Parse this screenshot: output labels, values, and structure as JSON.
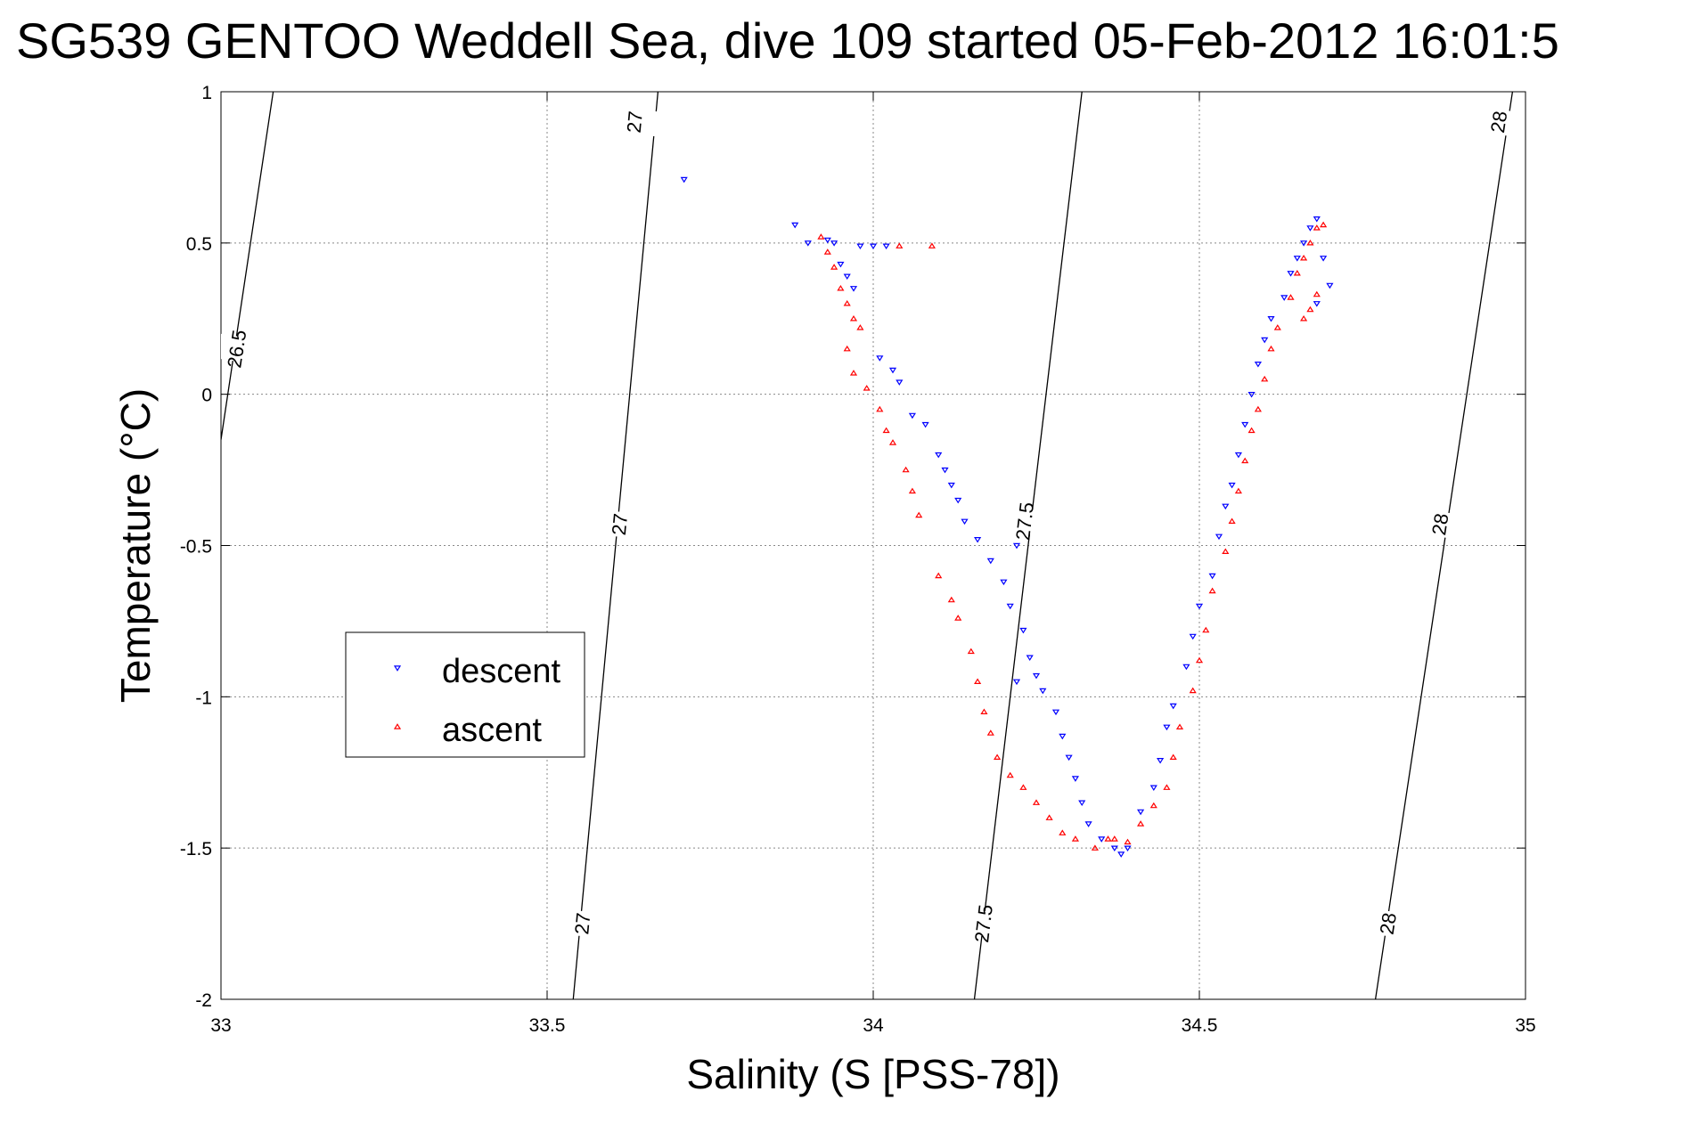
{
  "chart_data": {
    "type": "scatter",
    "title": "SG539 GENTOO Weddell Sea, dive 109 started 05-Feb-2012 16:01:5",
    "xlabel": "Salinity (S [PSS-78])",
    "ylabel": "Temperature (°C)",
    "xlim": [
      33,
      35
    ],
    "ylim": [
      -2,
      1
    ],
    "xticks": [
      33,
      33.5,
      34,
      34.5,
      35
    ],
    "xtick_labels": [
      "33",
      "33.5",
      "34",
      "34.5",
      "35"
    ],
    "yticks": [
      -2,
      -1.5,
      -1,
      -0.5,
      0,
      0.5,
      1
    ],
    "ytick_labels": [
      "-2",
      "-1.5",
      "-1",
      "-0.5",
      "0",
      "0.5",
      "1"
    ],
    "grid": true,
    "legend_position": "middle-left",
    "density_contours": [
      {
        "label": "26.5",
        "points": [
          [
            33.08,
            1.0
          ],
          [
            33.0,
            -0.15
          ]
        ],
        "label_positions": [
          [
            33.025,
            0.15
          ]
        ]
      },
      {
        "label": "27",
        "points": [
          [
            33.67,
            1.0
          ],
          [
            33.54,
            -2.0
          ]
        ],
        "label_positions": [
          [
            33.635,
            0.9
          ],
          [
            33.612,
            -0.43
          ],
          [
            33.555,
            -1.75
          ]
        ]
      },
      {
        "label": "27.5",
        "points": [
          [
            34.32,
            1.0
          ],
          [
            34.155,
            -2.0
          ]
        ],
        "label_positions": [
          [
            34.233,
            -0.42
          ],
          [
            34.17,
            -1.75
          ]
        ]
      },
      {
        "label": "28",
        "points": [
          [
            34.98,
            1.0
          ],
          [
            34.77,
            -2.0
          ]
        ],
        "label_positions": [
          [
            34.96,
            0.9
          ],
          [
            34.87,
            -0.43
          ],
          [
            34.79,
            -1.75
          ]
        ]
      }
    ],
    "series": [
      {
        "name": "descent",
        "marker": "down-triangle",
        "color": "#0000ff",
        "points": [
          [
            33.71,
            0.71
          ],
          [
            33.88,
            0.56
          ],
          [
            33.9,
            0.5
          ],
          [
            33.93,
            0.51
          ],
          [
            33.94,
            0.5
          ],
          [
            33.95,
            0.43
          ],
          [
            33.96,
            0.39
          ],
          [
            33.97,
            0.35
          ],
          [
            33.98,
            0.49
          ],
          [
            34.0,
            0.49
          ],
          [
            34.02,
            0.49
          ],
          [
            34.01,
            0.12
          ],
          [
            34.03,
            0.08
          ],
          [
            34.04,
            0.04
          ],
          [
            34.06,
            -0.07
          ],
          [
            34.08,
            -0.1
          ],
          [
            34.1,
            -0.2
          ],
          [
            34.11,
            -0.25
          ],
          [
            34.12,
            -0.3
          ],
          [
            34.13,
            -0.35
          ],
          [
            34.14,
            -0.42
          ],
          [
            34.16,
            -0.48
          ],
          [
            34.18,
            -0.55
          ],
          [
            34.2,
            -0.62
          ],
          [
            34.22,
            -0.5
          ],
          [
            34.21,
            -0.7
          ],
          [
            34.23,
            -0.78
          ],
          [
            34.24,
            -0.87
          ],
          [
            34.25,
            -0.93
          ],
          [
            34.22,
            -0.95
          ],
          [
            34.26,
            -0.98
          ],
          [
            34.28,
            -1.05
          ],
          [
            34.29,
            -1.13
          ],
          [
            34.3,
            -1.2
          ],
          [
            34.31,
            -1.27
          ],
          [
            34.32,
            -1.35
          ],
          [
            34.33,
            -1.42
          ],
          [
            34.35,
            -1.47
          ],
          [
            34.37,
            -1.5
          ],
          [
            34.38,
            -1.52
          ],
          [
            34.39,
            -1.5
          ],
          [
            34.41,
            -1.38
          ],
          [
            34.43,
            -1.3
          ],
          [
            34.44,
            -1.21
          ],
          [
            34.45,
            -1.1
          ],
          [
            34.46,
            -1.03
          ],
          [
            34.48,
            -0.9
          ],
          [
            34.49,
            -0.8
          ],
          [
            34.5,
            -0.7
          ],
          [
            34.52,
            -0.6
          ],
          [
            34.53,
            -0.47
          ],
          [
            34.54,
            -0.37
          ],
          [
            34.55,
            -0.3
          ],
          [
            34.56,
            -0.2
          ],
          [
            34.57,
            -0.1
          ],
          [
            34.58,
            0.0
          ],
          [
            34.59,
            0.1
          ],
          [
            34.6,
            0.18
          ],
          [
            34.61,
            0.25
          ],
          [
            34.63,
            0.32
          ],
          [
            34.64,
            0.4
          ],
          [
            34.65,
            0.45
          ],
          [
            34.66,
            0.5
          ],
          [
            34.67,
            0.55
          ],
          [
            34.68,
            0.58
          ],
          [
            34.69,
            0.45
          ],
          [
            34.7,
            0.36
          ],
          [
            34.68,
            0.3
          ]
        ]
      },
      {
        "name": "ascent",
        "marker": "up-triangle",
        "color": "#ff0000",
        "points": [
          [
            33.92,
            0.52
          ],
          [
            33.93,
            0.47
          ],
          [
            33.94,
            0.42
          ],
          [
            33.95,
            0.35
          ],
          [
            33.96,
            0.3
          ],
          [
            33.97,
            0.25
          ],
          [
            33.98,
            0.22
          ],
          [
            33.96,
            0.15
          ],
          [
            33.97,
            0.07
          ],
          [
            33.99,
            0.02
          ],
          [
            34.01,
            -0.05
          ],
          [
            34.02,
            -0.12
          ],
          [
            34.03,
            -0.16
          ],
          [
            34.05,
            -0.25
          ],
          [
            34.06,
            -0.32
          ],
          [
            34.07,
            -0.4
          ],
          [
            34.1,
            -0.6
          ],
          [
            34.12,
            -0.68
          ],
          [
            34.13,
            -0.74
          ],
          [
            34.15,
            -0.85
          ],
          [
            34.16,
            -0.95
          ],
          [
            34.17,
            -1.05
          ],
          [
            34.18,
            -1.12
          ],
          [
            34.19,
            -1.2
          ],
          [
            34.21,
            -1.26
          ],
          [
            34.23,
            -1.3
          ],
          [
            34.25,
            -1.35
          ],
          [
            34.27,
            -1.4
          ],
          [
            34.29,
            -1.45
          ],
          [
            34.31,
            -1.47
          ],
          [
            34.34,
            -1.5
          ],
          [
            34.36,
            -1.47
          ],
          [
            34.37,
            -1.47
          ],
          [
            34.39,
            -1.48
          ],
          [
            34.41,
            -1.42
          ],
          [
            34.43,
            -1.36
          ],
          [
            34.45,
            -1.3
          ],
          [
            34.46,
            -1.2
          ],
          [
            34.47,
            -1.1
          ],
          [
            34.49,
            -0.98
          ],
          [
            34.5,
            -0.88
          ],
          [
            34.51,
            -0.78
          ],
          [
            34.52,
            -0.65
          ],
          [
            34.54,
            -0.52
          ],
          [
            34.55,
            -0.42
          ],
          [
            34.56,
            -0.32
          ],
          [
            34.57,
            -0.22
          ],
          [
            34.58,
            -0.12
          ],
          [
            34.59,
            -0.05
          ],
          [
            34.6,
            0.05
          ],
          [
            34.61,
            0.15
          ],
          [
            34.62,
            0.22
          ],
          [
            34.64,
            0.32
          ],
          [
            34.65,
            0.4
          ],
          [
            34.66,
            0.45
          ],
          [
            34.67,
            0.5
          ],
          [
            34.68,
            0.55
          ],
          [
            34.69,
            0.56
          ],
          [
            34.67,
            0.28
          ],
          [
            34.68,
            0.33
          ],
          [
            34.66,
            0.25
          ],
          [
            34.04,
            0.49
          ],
          [
            34.09,
            0.49
          ]
        ]
      }
    ]
  }
}
